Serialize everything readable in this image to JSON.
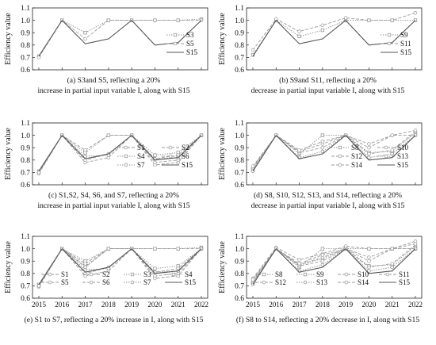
{
  "figure": {
    "ylabel": "Efficiency value",
    "panels": [
      {
        "id": "a",
        "caption_line1": "(a)  S3and S5, reflecting a 20%",
        "caption_line2": "increase in partial input variable I, along with S15",
        "show_xticks": false,
        "legend_position": "right-center",
        "legend_columns": 1
      },
      {
        "id": "b",
        "caption_line1": "(b)     S9and S11, reflecting a 20%",
        "caption_line2": "decrease in partial input variable I, along with S15",
        "show_xticks": false,
        "legend_position": "right-center",
        "legend_columns": 1
      },
      {
        "id": "c",
        "caption_line1": "(c)  S1,S2, S4, S6, and S7, reflecting a 20%",
        "caption_line2": "increase in partial input variable I, along with S15",
        "show_xticks": false,
        "legend_position": "bottom-right",
        "legend_columns": 2
      },
      {
        "id": "d",
        "caption_line1": "(d) S8, S10, S12, S13, and S14, reflecting a 20%",
        "caption_line2": "decrease in partial input variable I, along with S15",
        "show_xticks": false,
        "legend_position": "bottom-right",
        "legend_columns": 2
      },
      {
        "id": "e",
        "caption_line1": "(e) S1 to S7, reflecting a 20% increase in I, along with S15",
        "caption_line2": "",
        "show_xticks": true,
        "legend_position": "bottom-center",
        "legend_columns": 4
      },
      {
        "id": "f",
        "caption_line1": "(f) S8 to S14, reflecting a 20% decrease in I, along with S15",
        "caption_line2": "",
        "show_xticks": true,
        "legend_position": "bottom-center",
        "legend_columns": 4
      }
    ]
  },
  "chart_data": [
    {
      "panel": "a",
      "type": "line",
      "x": [
        2015,
        2016,
        2017,
        2018,
        2019,
        2020,
        2021,
        2022
      ],
      "ylim": [
        0.6,
        1.1
      ],
      "yticks": [
        0.6,
        0.7,
        0.8,
        0.9,
        1.0,
        1.1
      ],
      "ylabel": "Efficiency value",
      "grid": false,
      "series": [
        {
          "name": "S3",
          "values": [
            0.71,
            1.0,
            0.9,
            1.0,
            1.0,
            1.0,
            1.0,
            1.01
          ],
          "style": "dotted",
          "marker": "square"
        },
        {
          "name": "S5",
          "values": [
            0.7,
            1.0,
            0.85,
            1.0,
            1.0,
            1.0,
            1.0,
            1.0
          ],
          "style": "dashed",
          "marker": "circle"
        },
        {
          "name": "S15",
          "values": [
            0.71,
            1.0,
            0.81,
            0.85,
            1.0,
            0.8,
            0.82,
            1.0
          ],
          "style": "solid",
          "marker": "none"
        }
      ]
    },
    {
      "panel": "b",
      "type": "line",
      "x": [
        2015,
        2016,
        2017,
        2018,
        2019,
        2020,
        2021,
        2022
      ],
      "ylim": [
        0.6,
        1.1
      ],
      "yticks": [
        0.6,
        0.7,
        0.8,
        0.9,
        1.0,
        1.1
      ],
      "ylabel": "Efficiency value",
      "grid": false,
      "series": [
        {
          "name": "S9",
          "values": [
            0.72,
            1.0,
            0.87,
            0.92,
            1.0,
            1.0,
            1.0,
            1.0
          ],
          "style": "dotted",
          "marker": "square"
        },
        {
          "name": "S11",
          "values": [
            0.76,
            1.01,
            0.91,
            0.96,
            1.02,
            1.0,
            1.0,
            1.06
          ],
          "style": "dashed",
          "marker": "circle"
        },
        {
          "name": "S15",
          "values": [
            0.71,
            1.0,
            0.81,
            0.85,
            1.0,
            0.8,
            0.82,
            1.0
          ],
          "style": "solid",
          "marker": "none"
        }
      ]
    },
    {
      "panel": "c",
      "type": "line",
      "x": [
        2015,
        2016,
        2017,
        2018,
        2019,
        2020,
        2021,
        2022
      ],
      "ylim": [
        0.6,
        1.1
      ],
      "yticks": [
        0.6,
        0.7,
        0.8,
        0.9,
        1.0,
        1.1
      ],
      "ylabel": "Efficiency value",
      "grid": false,
      "series": [
        {
          "name": "S1",
          "values": [
            0.69,
            1.0,
            0.78,
            0.82,
            1.0,
            0.76,
            0.78,
            1.0
          ],
          "style": "dashed",
          "marker": "circle"
        },
        {
          "name": "S2",
          "values": [
            0.7,
            1.0,
            0.8,
            0.85,
            1.0,
            0.78,
            0.8,
            1.0
          ],
          "style": "dashed",
          "marker": "circle"
        },
        {
          "name": "S4",
          "values": [
            0.71,
            1.0,
            0.86,
            1.0,
            1.0,
            0.84,
            0.86,
            1.0
          ],
          "style": "dotted",
          "marker": "square"
        },
        {
          "name": "S6",
          "values": [
            0.7,
            1.0,
            0.88,
            1.0,
            1.0,
            0.81,
            0.84,
            1.0
          ],
          "style": "dashed",
          "marker": "circle"
        },
        {
          "name": "S7",
          "values": [
            0.7,
            1.0,
            0.83,
            0.84,
            1.0,
            0.81,
            0.82,
            1.0
          ],
          "style": "dotted",
          "marker": "circle"
        },
        {
          "name": "S15",
          "values": [
            0.71,
            1.0,
            0.81,
            0.85,
            1.0,
            0.8,
            0.82,
            1.0
          ],
          "style": "solid",
          "marker": "none"
        }
      ]
    },
    {
      "panel": "d",
      "type": "line",
      "x": [
        2015,
        2016,
        2017,
        2018,
        2019,
        2020,
        2021,
        2022
      ],
      "ylim": [
        0.6,
        1.1
      ],
      "yticks": [
        0.6,
        0.7,
        0.8,
        0.9,
        1.0,
        1.1
      ],
      "ylabel": "Efficiency value",
      "grid": false,
      "series": [
        {
          "name": "S8",
          "values": [
            0.72,
            1.0,
            0.85,
            1.0,
            1.0,
            0.86,
            0.87,
            1.02
          ],
          "style": "dotted",
          "marker": "square"
        },
        {
          "name": "S10",
          "values": [
            0.73,
            1.0,
            0.86,
            0.9,
            1.0,
            0.85,
            0.88,
            1.03
          ],
          "style": "dashed",
          "marker": "circle"
        },
        {
          "name": "S12",
          "values": [
            0.74,
            1.0,
            0.87,
            0.93,
            1.0,
            0.9,
            1.0,
            1.0
          ],
          "style": "dashed",
          "marker": "circle"
        },
        {
          "name": "S13",
          "values": [
            0.71,
            1.0,
            0.82,
            0.87,
            1.0,
            0.82,
            0.85,
            1.0
          ],
          "style": "dotted",
          "marker": "circle"
        },
        {
          "name": "S14",
          "values": [
            0.75,
            1.0,
            0.88,
            0.95,
            1.0,
            0.93,
            1.0,
            1.04
          ],
          "style": "dashed",
          "marker": "circle"
        },
        {
          "name": "S15",
          "values": [
            0.71,
            1.0,
            0.81,
            0.85,
            1.0,
            0.8,
            0.82,
            1.0
          ],
          "style": "solid",
          "marker": "none"
        }
      ]
    },
    {
      "panel": "e",
      "type": "line",
      "x": [
        2015,
        2016,
        2017,
        2018,
        2019,
        2020,
        2021,
        2022
      ],
      "ylim": [
        0.6,
        1.1
      ],
      "yticks": [
        0.6,
        0.7,
        0.8,
        0.9,
        1.0,
        1.1
      ],
      "ylabel": "Efficiency value",
      "grid": false,
      "series": [
        {
          "name": "S1",
          "values": [
            0.69,
            1.0,
            0.78,
            0.82,
            1.0,
            0.76,
            0.78,
            1.0
          ],
          "style": "dashed",
          "marker": "circle"
        },
        {
          "name": "S2",
          "values": [
            0.7,
            1.0,
            0.8,
            0.85,
            1.0,
            0.78,
            0.8,
            1.0
          ],
          "style": "dashed",
          "marker": "circle"
        },
        {
          "name": "S3",
          "values": [
            0.71,
            1.0,
            0.9,
            1.0,
            1.0,
            1.0,
            1.0,
            1.01
          ],
          "style": "dotted",
          "marker": "square"
        },
        {
          "name": "S4",
          "values": [
            0.71,
            1.0,
            0.86,
            1.0,
            1.0,
            0.84,
            0.86,
            1.0
          ],
          "style": "dotted",
          "marker": "square"
        },
        {
          "name": "S5",
          "values": [
            0.7,
            1.0,
            0.85,
            1.0,
            1.0,
            1.0,
            1.0,
            1.0
          ],
          "style": "dashed",
          "marker": "circle"
        },
        {
          "name": "S6",
          "values": [
            0.7,
            1.0,
            0.88,
            1.0,
            1.0,
            0.81,
            0.84,
            1.0
          ],
          "style": "dashed",
          "marker": "circle"
        },
        {
          "name": "S7",
          "values": [
            0.7,
            1.0,
            0.83,
            0.84,
            1.0,
            0.81,
            0.82,
            1.0
          ],
          "style": "dotted",
          "marker": "circle"
        },
        {
          "name": "S15",
          "values": [
            0.71,
            1.0,
            0.81,
            0.85,
            1.0,
            0.8,
            0.82,
            1.0
          ],
          "style": "solid",
          "marker": "none"
        }
      ]
    },
    {
      "panel": "f",
      "type": "line",
      "x": [
        2015,
        2016,
        2017,
        2018,
        2019,
        2020,
        2021,
        2022
      ],
      "ylim": [
        0.6,
        1.1
      ],
      "yticks": [
        0.6,
        0.7,
        0.8,
        0.9,
        1.0,
        1.1
      ],
      "ylabel": "Efficiency value",
      "grid": false,
      "series": [
        {
          "name": "S8",
          "values": [
            0.72,
            1.0,
            0.85,
            1.0,
            1.0,
            0.86,
            0.87,
            1.02
          ],
          "style": "dotted",
          "marker": "square"
        },
        {
          "name": "S9",
          "values": [
            0.72,
            1.0,
            0.87,
            0.92,
            1.0,
            1.0,
            1.0,
            1.0
          ],
          "style": "dotted",
          "marker": "square"
        },
        {
          "name": "S10",
          "values": [
            0.73,
            1.0,
            0.86,
            0.9,
            1.0,
            0.85,
            0.88,
            1.03
          ],
          "style": "dashed",
          "marker": "circle"
        },
        {
          "name": "S11",
          "values": [
            0.76,
            1.01,
            0.91,
            0.96,
            1.02,
            1.0,
            1.0,
            1.06
          ],
          "style": "dashed",
          "marker": "circle"
        },
        {
          "name": "S12",
          "values": [
            0.74,
            1.0,
            0.87,
            0.93,
            1.0,
            0.9,
            1.0,
            1.0
          ],
          "style": "dashed",
          "marker": "circle"
        },
        {
          "name": "S13",
          "values": [
            0.71,
            1.0,
            0.82,
            0.87,
            1.0,
            0.82,
            0.85,
            1.0
          ],
          "style": "dotted",
          "marker": "circle"
        },
        {
          "name": "S14",
          "values": [
            0.75,
            1.0,
            0.88,
            0.95,
            1.0,
            0.93,
            1.0,
            1.04
          ],
          "style": "dashed",
          "marker": "circle"
        },
        {
          "name": "S15",
          "values": [
            0.71,
            1.0,
            0.81,
            0.85,
            1.0,
            0.8,
            0.82,
            1.0
          ],
          "style": "solid",
          "marker": "none"
        }
      ]
    }
  ]
}
